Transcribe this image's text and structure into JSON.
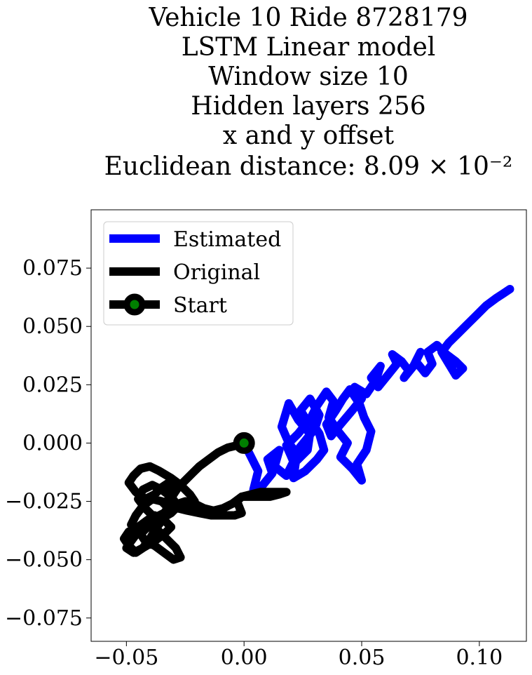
{
  "chart_data": {
    "type": "line",
    "title_lines": [
      "Vehicle 10 Ride 8728179",
      "LSTM Linear model",
      "Window size 10",
      "Hidden layers 256",
      "x and y offset",
      "Euclidean distance: 8.09 × 10⁻²"
    ],
    "xlim": [
      -0.065,
      0.12
    ],
    "ylim": [
      -0.085,
      0.1
    ],
    "xticks": [
      -0.05,
      0.0,
      0.05,
      0.1
    ],
    "xtick_labels": [
      "−0.05",
      "0.00",
      "0.05",
      "0.10"
    ],
    "yticks": [
      -0.075,
      -0.05,
      -0.025,
      0.0,
      0.025,
      0.05,
      0.075
    ],
    "ytick_labels": [
      "−0.075",
      "−0.050",
      "−0.025",
      "0.000",
      "0.025",
      "0.050",
      "0.075"
    ],
    "grid": false,
    "legend_position": "upper-left",
    "series": [
      {
        "name": "Estimated",
        "color": "#0000ff",
        "x": [
          0.0,
          0.003,
          0.006,
          0.004,
          0.008,
          0.012,
          0.01,
          0.015,
          0.013,
          0.018,
          0.021,
          0.018,
          0.023,
          0.027,
          0.024,
          0.028,
          0.032,
          0.03,
          0.026,
          0.022,
          0.019,
          0.016,
          0.019,
          0.023,
          0.028,
          0.027,
          0.022,
          0.021,
          0.026,
          0.031,
          0.034,
          0.032,
          0.028,
          0.031,
          0.035,
          0.038,
          0.036,
          0.04,
          0.044,
          0.041,
          0.046,
          0.05,
          0.048,
          0.052,
          0.054,
          0.051,
          0.049,
          0.045,
          0.042,
          0.039,
          0.035,
          0.037,
          0.041,
          0.046,
          0.05,
          0.047,
          0.052,
          0.056,
          0.058,
          0.054,
          0.057,
          0.061,
          0.065,
          0.063,
          0.067,
          0.07,
          0.068,
          0.072,
          0.075,
          0.073,
          0.077,
          0.08,
          0.078,
          0.082,
          0.086,
          0.09,
          0.093,
          0.09,
          0.087,
          0.084,
          0.087,
          0.091,
          0.095,
          0.099,
          0.103,
          0.107,
          0.11,
          0.113
        ],
        "y": [
          0.0,
          -0.006,
          -0.012,
          -0.02,
          -0.018,
          -0.013,
          -0.007,
          -0.003,
          -0.01,
          -0.014,
          -0.008,
          -0.001,
          0.004,
          0.009,
          0.014,
          0.019,
          0.012,
          0.006,
          0.001,
          -0.004,
          0.0,
          0.007,
          0.017,
          0.01,
          0.004,
          -0.003,
          -0.008,
          -0.015,
          -0.012,
          -0.007,
          -0.003,
          0.004,
          0.01,
          0.016,
          0.022,
          0.018,
          0.011,
          0.005,
          0.0,
          -0.006,
          -0.011,
          -0.016,
          -0.009,
          -0.003,
          0.005,
          0.011,
          0.017,
          0.023,
          0.019,
          0.014,
          0.008,
          0.003,
          0.008,
          0.014,
          0.019,
          0.024,
          0.021,
          0.027,
          0.033,
          0.028,
          0.024,
          0.029,
          0.034,
          0.038,
          0.035,
          0.031,
          0.028,
          0.033,
          0.039,
          0.035,
          0.03,
          0.034,
          0.039,
          0.042,
          0.038,
          0.035,
          0.032,
          0.029,
          0.034,
          0.039,
          0.043,
          0.047,
          0.051,
          0.055,
          0.059,
          0.062,
          0.064,
          0.066
        ]
      },
      {
        "name": "Original",
        "color": "#000000",
        "x": [
          0.0,
          -0.003,
          -0.007,
          -0.011,
          -0.015,
          -0.019,
          -0.022,
          -0.025,
          -0.028,
          -0.03,
          -0.033,
          -0.031,
          -0.028,
          -0.025,
          -0.021,
          -0.017,
          -0.013,
          -0.009,
          -0.005,
          -0.001,
          0.003,
          0.007,
          0.011,
          0.015,
          0.018,
          0.015,
          0.011,
          0.007,
          0.003,
          -0.001,
          -0.003,
          -0.001,
          -0.004,
          -0.009,
          -0.014,
          -0.019,
          -0.024,
          -0.028,
          -0.025,
          -0.021,
          -0.023,
          -0.027,
          -0.031,
          -0.036,
          -0.04,
          -0.044,
          -0.047,
          -0.049,
          -0.046,
          -0.042,
          -0.038,
          -0.035,
          -0.032,
          -0.03,
          -0.031,
          -0.034,
          -0.038,
          -0.042,
          -0.045,
          -0.043,
          -0.039,
          -0.035,
          -0.031,
          -0.028,
          -0.031,
          -0.036,
          -0.041,
          -0.044,
          -0.042,
          -0.038,
          -0.034,
          -0.03,
          -0.027,
          -0.029,
          -0.033,
          -0.037,
          -0.041,
          -0.045,
          -0.048,
          -0.05,
          -0.047,
          -0.043,
          -0.038,
          -0.034,
          -0.031,
          -0.034,
          -0.038,
          -0.041,
          -0.045,
          -0.049,
          -0.051,
          -0.049,
          -0.046,
          -0.043,
          -0.04,
          -0.037,
          -0.034,
          -0.032,
          -0.035,
          -0.039,
          -0.043,
          -0.046,
          -0.048,
          -0.045
        ],
        "y": [
          0.0,
          -0.001,
          -0.002,
          -0.004,
          -0.007,
          -0.01,
          -0.013,
          -0.016,
          -0.019,
          -0.022,
          -0.025,
          -0.027,
          -0.026,
          -0.025,
          -0.026,
          -0.028,
          -0.029,
          -0.028,
          -0.026,
          -0.023,
          -0.022,
          -0.021,
          -0.021,
          -0.021,
          -0.021,
          -0.022,
          -0.023,
          -0.023,
          -0.023,
          -0.023,
          -0.025,
          -0.03,
          -0.031,
          -0.031,
          -0.031,
          -0.03,
          -0.029,
          -0.028,
          -0.026,
          -0.025,
          -0.022,
          -0.018,
          -0.015,
          -0.012,
          -0.01,
          -0.011,
          -0.014,
          -0.017,
          -0.021,
          -0.024,
          -0.022,
          -0.019,
          -0.017,
          -0.021,
          -0.026,
          -0.03,
          -0.032,
          -0.028,
          -0.024,
          -0.02,
          -0.018,
          -0.02,
          -0.023,
          -0.027,
          -0.03,
          -0.033,
          -0.036,
          -0.039,
          -0.042,
          -0.044,
          -0.047,
          -0.05,
          -0.049,
          -0.045,
          -0.041,
          -0.037,
          -0.036,
          -0.038,
          -0.042,
          -0.045,
          -0.047,
          -0.045,
          -0.042,
          -0.039,
          -0.036,
          -0.033,
          -0.031,
          -0.033,
          -0.036,
          -0.038,
          -0.041,
          -0.044,
          -0.047,
          -0.045,
          -0.041,
          -0.036,
          -0.032,
          -0.028,
          -0.025,
          -0.024,
          -0.027,
          -0.031,
          -0.035,
          -0.038
        ]
      }
    ],
    "start_point": {
      "name": "Start",
      "x": 0.0,
      "y": 0.0,
      "marker_fill": "#008000",
      "marker_edge": "#000000"
    },
    "legend": [
      {
        "label": "Estimated",
        "color": "#0000ff",
        "kind": "line"
      },
      {
        "label": "Original",
        "color": "#000000",
        "kind": "line"
      },
      {
        "label": "Start",
        "color": "#000000",
        "kind": "marker",
        "marker_fill": "#008000"
      }
    ]
  }
}
